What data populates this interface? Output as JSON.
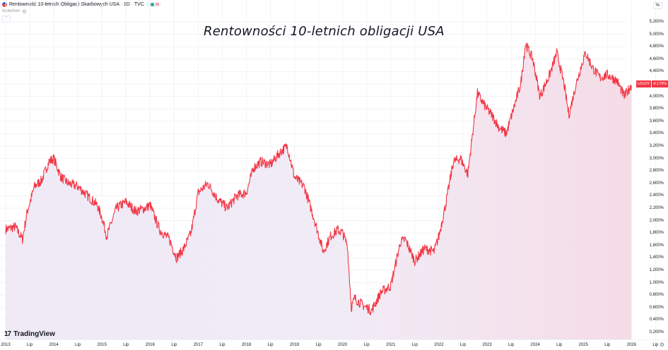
{
  "header": {
    "symbol_title": "Rentowność 10-letnich Obligacji Skarbowych USA · 1D · TVC",
    "volume_label": "Wolumen"
  },
  "chart_data": {
    "type": "area",
    "title": "Rentowności 10-letnich obligacji USA",
    "xlabel": "",
    "ylabel": "%",
    "ylim": [
      0.2,
      5.2
    ],
    "grid": true,
    "legend": "none",
    "series_name": "US10Y",
    "line_color": "#f23645",
    "last_value": "4,179%",
    "x_tick_labels": [
      "2013",
      "Lip",
      "2014",
      "Lip",
      "2015",
      "Lip",
      "2016",
      "Lip",
      "2017",
      "Lip",
      "2018",
      "Lip",
      "2019",
      "Lip",
      "2020",
      "Lip",
      "2021",
      "Lip",
      "2022",
      "Lip",
      "2023",
      "Lip",
      "2024",
      "Lip",
      "2025",
      "Lip",
      "2026",
      "Lip"
    ],
    "y_tick_labels": [
      "5,200%",
      "5,000%",
      "4,800%",
      "4,600%",
      "4,400%",
      "4,200%",
      "4,000%",
      "3,800%",
      "3,600%",
      "3,400%",
      "3,200%",
      "3,000%",
      "2,800%",
      "2,600%",
      "2,400%",
      "2,200%",
      "2,000%",
      "1,800%",
      "1,600%",
      "1,400%",
      "1,200%",
      "1,000%",
      "0,800%",
      "0,600%",
      "0,400%",
      "0,200%"
    ],
    "x": [
      2013.0,
      2013.2,
      2013.35,
      2013.45,
      2013.6,
      2013.75,
      2013.9,
      2014.0,
      2014.15,
      2014.3,
      2014.5,
      2014.7,
      2014.9,
      2015.0,
      2015.1,
      2015.3,
      2015.5,
      2015.7,
      2015.9,
      2016.0,
      2016.2,
      2016.4,
      2016.55,
      2016.7,
      2016.85,
      2017.0,
      2017.2,
      2017.4,
      2017.6,
      2017.8,
      2018.0,
      2018.15,
      2018.3,
      2018.5,
      2018.7,
      2018.85,
      2019.0,
      2019.2,
      2019.4,
      2019.6,
      2019.75,
      2019.9,
      2020.0,
      2020.1,
      2020.18,
      2020.25,
      2020.4,
      2020.6,
      2020.8,
      2021.0,
      2021.2,
      2021.3,
      2021.5,
      2021.7,
      2021.9,
      2022.0,
      2022.15,
      2022.3,
      2022.45,
      2022.6,
      2022.8,
      2022.95,
      2023.1,
      2023.25,
      2023.4,
      2023.55,
      2023.7,
      2023.8,
      2023.95,
      2024.1,
      2024.3,
      2024.45,
      2024.6,
      2024.7,
      2024.85,
      2025.0,
      2025.05,
      2025.2,
      2025.35,
      2025.5,
      2025.7,
      2025.85,
      2026.0
    ],
    "values": [
      1.86,
      1.9,
      1.7,
      2.15,
      2.55,
      2.65,
      2.95,
      3.0,
      2.7,
      2.6,
      2.55,
      2.4,
      2.25,
      2.05,
      1.75,
      2.2,
      2.3,
      2.15,
      2.2,
      2.25,
      1.85,
      1.7,
      1.4,
      1.55,
      1.8,
      2.45,
      2.6,
      2.35,
      2.2,
      2.4,
      2.45,
      2.85,
      2.95,
      2.9,
      3.1,
      3.2,
      2.7,
      2.55,
      2.05,
      1.5,
      1.75,
      1.85,
      1.8,
      1.6,
      0.6,
      0.75,
      0.65,
      0.55,
      0.85,
      0.95,
      1.65,
      1.7,
      1.35,
      1.55,
      1.5,
      1.75,
      2.3,
      2.95,
      3.0,
      2.75,
      4.05,
      3.85,
      3.7,
      3.5,
      3.4,
      3.8,
      4.2,
      4.85,
      4.6,
      4.0,
      4.35,
      4.7,
      4.2,
      3.7,
      4.2,
      4.6,
      4.7,
      4.45,
      4.3,
      4.35,
      4.25,
      4.0,
      4.18
    ]
  },
  "price_badge": {
    "symbol": "US10Y",
    "value": "4,179%"
  },
  "axis": {
    "unit_button": "%"
  },
  "branding": {
    "logo_text": "TradingView",
    "logo_mark": "17"
  }
}
